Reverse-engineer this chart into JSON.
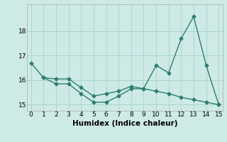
{
  "xlabel": "Humidex (Indice chaleur)",
  "background_color": "#ceeae6",
  "line_color": "#2e7d6e",
  "grid_color": "#aad4ce",
  "line1_x": [
    0,
    1,
    2,
    3,
    4,
    5,
    6,
    7,
    8,
    9,
    10,
    11,
    12,
    13,
    14,
    15
  ],
  "line1_y": [
    16.7,
    16.1,
    15.85,
    15.85,
    15.45,
    15.1,
    15.1,
    15.35,
    15.65,
    15.65,
    16.6,
    16.3,
    17.7,
    18.6,
    16.6,
    15.0
  ],
  "line2_x": [
    1,
    2,
    3,
    4,
    5,
    6,
    7,
    8,
    9,
    10,
    11,
    12,
    13,
    14,
    15
  ],
  "line2_y": [
    16.1,
    16.05,
    16.05,
    15.7,
    15.35,
    15.45,
    15.55,
    15.75,
    15.65,
    15.55,
    15.45,
    15.3,
    15.2,
    15.1,
    15.0
  ],
  "ylim": [
    14.75,
    19.1
  ],
  "xlim": [
    -0.3,
    15.3
  ],
  "yticks": [
    15,
    16,
    17,
    18
  ],
  "xticks": [
    0,
    1,
    2,
    3,
    4,
    5,
    6,
    7,
    8,
    9,
    10,
    11,
    12,
    13,
    14,
    15
  ],
  "marker": "D",
  "markersize": 2.5,
  "linewidth": 1.0,
  "tick_labelsize": 6.5,
  "xlabel_fontsize": 7.5
}
